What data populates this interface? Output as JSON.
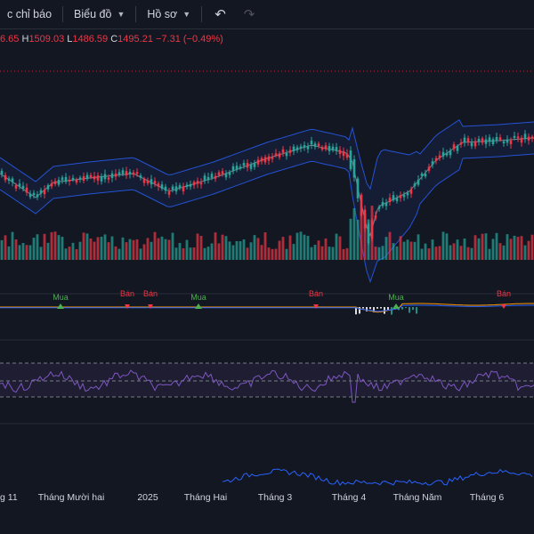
{
  "toolbar": {
    "indicators_label": "c chỉ báo",
    "chart_label": "Biểu đồ",
    "profile_label": "Hồ sơ"
  },
  "ohlc": {
    "open_partial": "6.65",
    "high_key": "H",
    "high": "1509.03",
    "low_key": "L",
    "low": "1486.59",
    "close_key": "C",
    "close": "1495.21",
    "change": "−7.31 (−0.49%)"
  },
  "signals": [
    {
      "text": "Mua",
      "type": "buy"
    },
    {
      "text": "Bán",
      "type": "sell"
    },
    {
      "text": "Bán",
      "type": "sell"
    },
    {
      "text": "Mua",
      "type": "buy"
    },
    {
      "text": "Bán",
      "type": "sell"
    },
    {
      "text": "Mua",
      "type": "buy"
    },
    {
      "text": "Bán",
      "type": "sell"
    }
  ],
  "xaxis": {
    "labels": [
      "g 11",
      "Tháng Mười hai",
      "2025",
      "Tháng Hai",
      "Tháng 3",
      "Tháng 4",
      "Tháng Năm",
      "Tháng 6"
    ]
  },
  "colors": {
    "background": "#131722",
    "up": "#26a69a",
    "down": "#f23645",
    "band": "#2962ff",
    "rsi": "#7e57c2",
    "buy_signal": "#4caf50",
    "sell_signal": "#f23645"
  }
}
